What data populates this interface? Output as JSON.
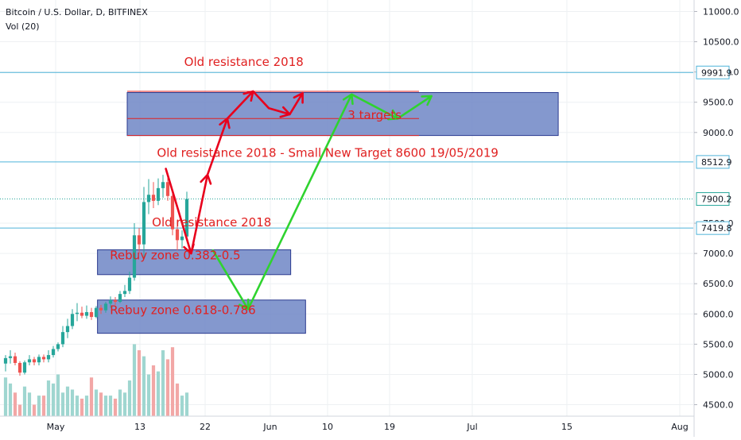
{
  "header": {
    "symbol_title": "Bitcoin / U.S. Dollar, D, BITFINEX",
    "volume_label": "Vol (20)"
  },
  "colors": {
    "up": "#26a69a",
    "down": "#ef5350",
    "up_volume": "#9fd6d0",
    "down_volume": "#f2a7a6",
    "grid": "#eef0f3",
    "level_line": "#4fb3d9",
    "zone_fill": "#6f86c6",
    "zone_border": "#2b3a8f",
    "annotation_text": "#e02020",
    "red_arrow": "#e8001c",
    "green_arrow": "#2fd32f",
    "price_badge_bg": "#ffffff",
    "last_price_bg": "#ffffff"
  },
  "chart_data": {
    "type": "candlestick",
    "symbol": "Bitcoin / U.S. Dollar",
    "interval": "D",
    "exchange": "BITFINEX",
    "indicator": "Vol (20)",
    "y_axis": {
      "range": [
        4310,
        11190
      ],
      "tick_labels": [
        "11000.0",
        "10500.0",
        "10000.0",
        "9500.0",
        "9000.0",
        "7500.0",
        "7000.0",
        "6500.0",
        "6000.0",
        "5500.0",
        "5000.0",
        "4500.0"
      ]
    },
    "x_axis": {
      "tick_labels": [
        "May",
        "13",
        "22",
        "Jun",
        "10",
        "19",
        "Jul",
        "15",
        "Aug"
      ]
    },
    "candles": [
      {
        "o": 5180,
        "h": 5320,
        "l": 5050,
        "c": 5270
      },
      {
        "o": 5270,
        "h": 5400,
        "l": 5180,
        "c": 5300
      },
      {
        "o": 5300,
        "h": 5360,
        "l": 5150,
        "c": 5190
      },
      {
        "o": 5190,
        "h": 5220,
        "l": 4980,
        "c": 5030
      },
      {
        "o": 5030,
        "h": 5230,
        "l": 5000,
        "c": 5200
      },
      {
        "o": 5200,
        "h": 5320,
        "l": 5150,
        "c": 5250
      },
      {
        "o": 5250,
        "h": 5290,
        "l": 5150,
        "c": 5200
      },
      {
        "o": 5200,
        "h": 5330,
        "l": 5150,
        "c": 5290
      },
      {
        "o": 5290,
        "h": 5330,
        "l": 5200,
        "c": 5250
      },
      {
        "o": 5250,
        "h": 5400,
        "l": 5200,
        "c": 5320
      },
      {
        "o": 5320,
        "h": 5470,
        "l": 5280,
        "c": 5420
      },
      {
        "o": 5420,
        "h": 5530,
        "l": 5380,
        "c": 5500
      },
      {
        "o": 5500,
        "h": 5800,
        "l": 5450,
        "c": 5700
      },
      {
        "o": 5700,
        "h": 5920,
        "l": 5600,
        "c": 5800
      },
      {
        "o": 5800,
        "h": 6080,
        "l": 5750,
        "c": 6000
      },
      {
        "o": 6000,
        "h": 6180,
        "l": 5880,
        "c": 6020
      },
      {
        "o": 6020,
        "h": 6120,
        "l": 5930,
        "c": 5970
      },
      {
        "o": 5970,
        "h": 6140,
        "l": 5920,
        "c": 6030
      },
      {
        "o": 6030,
        "h": 6100,
        "l": 5900,
        "c": 5950
      },
      {
        "o": 5950,
        "h": 6130,
        "l": 5930,
        "c": 6100
      },
      {
        "o": 6100,
        "h": 6150,
        "l": 6000,
        "c": 6060
      },
      {
        "o": 6060,
        "h": 6200,
        "l": 6020,
        "c": 6170
      },
      {
        "o": 6170,
        "h": 6290,
        "l": 6100,
        "c": 6230
      },
      {
        "o": 6230,
        "h": 6280,
        "l": 6150,
        "c": 6200
      },
      {
        "o": 6200,
        "h": 6380,
        "l": 6180,
        "c": 6330
      },
      {
        "o": 6330,
        "h": 6480,
        "l": 6280,
        "c": 6380
      },
      {
        "o": 6380,
        "h": 6700,
        "l": 6330,
        "c": 6600
      },
      {
        "o": 6600,
        "h": 7500,
        "l": 6550,
        "c": 7300
      },
      {
        "o": 7300,
        "h": 7420,
        "l": 7000,
        "c": 7150
      },
      {
        "o": 7150,
        "h": 8100,
        "l": 6900,
        "c": 7850
      },
      {
        "o": 7850,
        "h": 8230,
        "l": 7650,
        "c": 7970
      },
      {
        "o": 7970,
        "h": 8180,
        "l": 7750,
        "c": 7870
      },
      {
        "o": 7870,
        "h": 8240,
        "l": 7800,
        "c": 8080
      },
      {
        "o": 8080,
        "h": 8300,
        "l": 7920,
        "c": 8180
      },
      {
        "o": 8180,
        "h": 8290,
        "l": 7870,
        "c": 7950
      },
      {
        "o": 7950,
        "h": 8010,
        "l": 7300,
        "c": 7400
      },
      {
        "o": 7400,
        "h": 7550,
        "l": 7050,
        "c": 7220
      },
      {
        "o": 7220,
        "h": 7380,
        "l": 7080,
        "c": 7280
      },
      {
        "o": 7280,
        "h": 8020,
        "l": 7250,
        "c": 7900
      }
    ],
    "volumes": [
      4950,
      4850,
      4700,
      4500,
      4800,
      4700,
      4500,
      4650,
      4650,
      4900,
      4850,
      5000,
      4700,
      4800,
      4750,
      4650,
      4600,
      4650,
      4950,
      4750,
      4700,
      4650,
      4650,
      4600,
      4750,
      4700,
      4900,
      5500,
      5400,
      5300,
      5000,
      5150,
      5050,
      5400,
      5250,
      5450,
      4850,
      4650,
      4700
    ],
    "volume_range": [
      4310,
      5700
    ],
    "levels": [
      {
        "value": 9991.9,
        "label": "9991.9"
      },
      {
        "value": 8512.9,
        "label": "8512.9"
      },
      {
        "value": 7419.8,
        "label": "7419.8"
      }
    ],
    "last_price": {
      "value": 7900.2,
      "label": "7900.2"
    },
    "zones": [
      {
        "top": 9660,
        "bottom": 8950,
        "x0": 26,
        "x1": 113
      },
      {
        "top": 7060,
        "bottom": 6650,
        "x0": 20,
        "x1": 59
      },
      {
        "top": 6230,
        "bottom": 5680,
        "x0": 20,
        "x1": 62
      }
    ],
    "resistance_lines": [
      9680,
      9230,
      8950
    ],
    "annotations": [
      {
        "text": "Old resistance 2018",
        "x": 37.5,
        "y": 10100
      },
      {
        "text": "3 targets",
        "x": 70.5,
        "y": 9220
      },
      {
        "text": "Old resistance 2018 - Small New Target 8600 19/05/2019",
        "x": 32,
        "y": 8600
      },
      {
        "text": "Old resistance 2018",
        "x": 31,
        "y": 7450
      },
      {
        "text": "Rebuy zone 0.382-0.5",
        "x": 22.5,
        "y": 6900
      },
      {
        "text": "Rebuy zone 0.618-0.786",
        "x": 22.5,
        "y": 6000
      }
    ],
    "red_path": [
      [
        33.8,
        8400
      ],
      [
        38.9,
        7000
      ],
      [
        42.2,
        8300
      ],
      [
        46.2,
        9230
      ],
      [
        51.4,
        9680
      ],
      [
        54.6,
        9400
      ],
      [
        58.8,
        9300
      ],
      [
        61.4,
        9650
      ]
    ],
    "red_arrowheads": [
      [
        38.9,
        7000
      ],
      [
        42.2,
        8300
      ],
      [
        46.2,
        9230
      ],
      [
        51.4,
        9680
      ],
      [
        58.8,
        9300
      ],
      [
        61.4,
        9650
      ]
    ],
    "green_path": [
      [
        43.3,
        7050
      ],
      [
        50.4,
        6080
      ],
      [
        71.3,
        9630
      ],
      [
        80.6,
        9230
      ],
      [
        87.4,
        9600
      ]
    ],
    "green_arrowheads": [
      [
        50.4,
        6080
      ],
      [
        71.3,
        9630
      ],
      [
        80.6,
        9230
      ],
      [
        87.4,
        9600
      ]
    ],
    "x_day_range": [
      0,
      140
    ]
  }
}
